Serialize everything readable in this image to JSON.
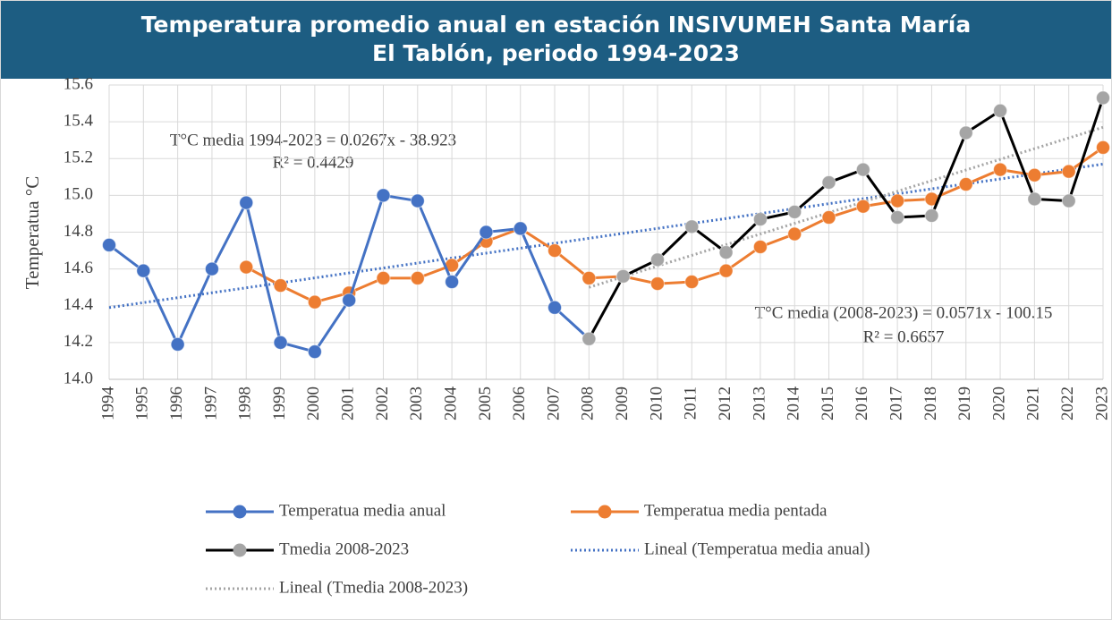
{
  "chart_data": {
    "type": "line",
    "title": "Temperatura promedio anual en estación INSIVUMEH Santa María El Tablón, periodo 1994-2023",
    "y_label": "Temperatua °C",
    "categories": [
      "1994",
      "1995",
      "1996",
      "1997",
      "1998",
      "1999",
      "2000",
      "2001",
      "2002",
      "2003",
      "2004",
      "2005",
      "2006",
      "2007",
      "2008",
      "2009",
      "2010",
      "2011",
      "2012",
      "2013",
      "2014",
      "2015",
      "2016",
      "2017",
      "2018",
      "2019",
      "2020",
      "2021",
      "2022",
      "2023"
    ],
    "series": [
      {
        "name": "Temperatua media anual",
        "color": "#4472c4",
        "marker_color": "#4472c4",
        "values": [
          14.73,
          14.59,
          14.19,
          14.6,
          14.96,
          14.2,
          14.15,
          14.43,
          15.0,
          14.97,
          14.53,
          14.8,
          14.82,
          14.39,
          14.22,
          null,
          null,
          null,
          null,
          null,
          null,
          null,
          null,
          null,
          null,
          null,
          null,
          null,
          null,
          null
        ]
      },
      {
        "name": "Temperatua media pentada",
        "color": "#ed7d31",
        "marker_color": "#ed7d31",
        "values": [
          null,
          null,
          null,
          null,
          14.61,
          14.51,
          14.42,
          14.47,
          14.55,
          14.55,
          14.62,
          14.75,
          14.82,
          14.7,
          14.55,
          14.56,
          14.52,
          14.53,
          14.59,
          14.72,
          14.79,
          14.88,
          14.94,
          14.97,
          14.98,
          15.06,
          15.14,
          15.11,
          15.13,
          15.26
        ]
      },
      {
        "name": "Tmedia 2008-2023",
        "color": "#000000",
        "marker_color": "#a5a5a5",
        "values": [
          null,
          null,
          null,
          null,
          null,
          null,
          null,
          null,
          null,
          null,
          null,
          null,
          null,
          null,
          14.22,
          14.56,
          14.65,
          14.83,
          14.69,
          14.87,
          14.91,
          15.07,
          15.14,
          14.88,
          14.89,
          15.34,
          15.46,
          14.98,
          14.97,
          15.53
        ]
      }
    ],
    "trendlines": [
      {
        "name": "Lineal (Temperatua media anual)",
        "color": "#4472c4",
        "categories": [
          "1994",
          "2023"
        ],
        "values": [
          14.39,
          15.17
        ]
      },
      {
        "name": "Lineal (Tmedia 2008-2023)",
        "color": "#a5a5a5",
        "categories": [
          "2008",
          "2023"
        ],
        "values": [
          14.5,
          15.37
        ]
      }
    ],
    "annotations": [
      "T°C media 1994-2023 = 0.0267x - 38.923",
      "R² = 0.4429",
      "T°C media (2008-2023) = 0.0571x - 100.15",
      "R² = 0.6657"
    ],
    "ylim": [
      14.0,
      15.6
    ],
    "yticks": [
      {
        "value": 14.0,
        "label": "14.0"
      },
      14.2,
      14.4,
      14.6,
      14.8,
      {
        "value": 15.0,
        "label": "15.0"
      },
      15.2,
      15.4,
      15.6
    ],
    "grid": true,
    "legend": "bottom"
  }
}
